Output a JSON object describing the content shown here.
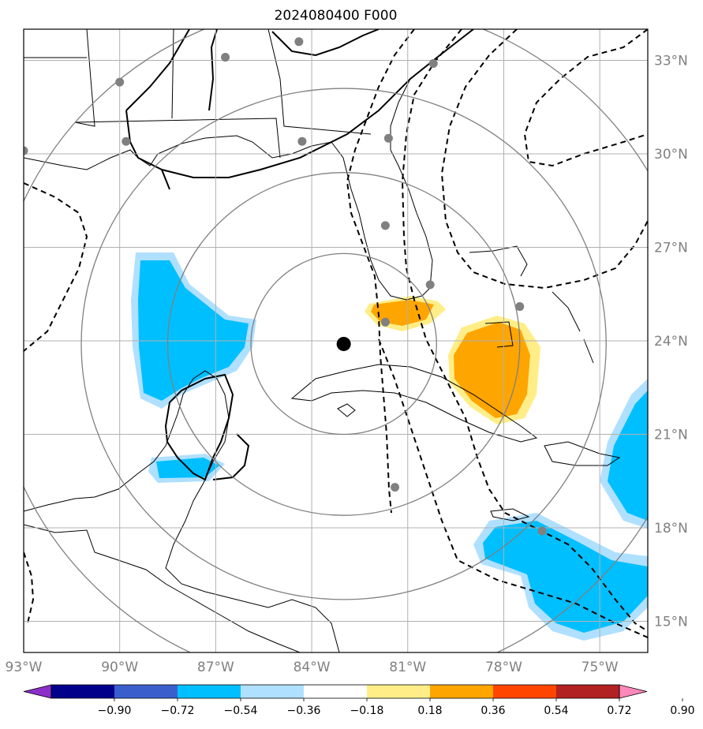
{
  "title": "2024080400 F000",
  "map": {
    "lon_range": [
      -93,
      -73.5
    ],
    "lat_range": [
      14,
      34
    ],
    "lon_ticks": [
      {
        "value": -93,
        "label": "93°W"
      },
      {
        "value": -90,
        "label": "90°W"
      },
      {
        "value": -87,
        "label": "87°W"
      },
      {
        "value": -84,
        "label": "84°W"
      },
      {
        "value": -81,
        "label": "81°W"
      },
      {
        "value": -78,
        "label": "78°W"
      },
      {
        "value": -75,
        "label": "75°W"
      }
    ],
    "lat_ticks": [
      {
        "value": 15,
        "label": "15°N"
      },
      {
        "value": 18,
        "label": "18°N"
      },
      {
        "value": 21,
        "label": "21°N"
      },
      {
        "value": 24,
        "label": "24°N"
      },
      {
        "value": 27,
        "label": "27°N"
      },
      {
        "value": 30,
        "label": "30°N"
      },
      {
        "value": 33,
        "label": "33°N"
      }
    ],
    "grid": true,
    "center": {
      "lon": -83.0,
      "lat": 23.9
    },
    "range_rings_deg": [
      2.9,
      5.5,
      8.2,
      11.0
    ],
    "stations": [
      {
        "lon": -93.0,
        "lat": 30.1
      },
      {
        "lon": -90.0,
        "lat": 32.3
      },
      {
        "lon": -89.8,
        "lat": 30.4
      },
      {
        "lon": -86.7,
        "lat": 33.1
      },
      {
        "lon": -84.4,
        "lat": 33.6
      },
      {
        "lon": -84.3,
        "lat": 30.4
      },
      {
        "lon": -81.6,
        "lat": 30.5
      },
      {
        "lon": -80.2,
        "lat": 32.9
      },
      {
        "lon": -81.7,
        "lat": 27.7
      },
      {
        "lon": -80.3,
        "lat": 25.8
      },
      {
        "lon": -81.7,
        "lat": 24.6
      },
      {
        "lon": -77.5,
        "lat": 25.1
      },
      {
        "lon": -81.4,
        "lat": 19.3
      },
      {
        "lon": -76.8,
        "lat": 17.9
      }
    ]
  },
  "colorbar": {
    "levels": [
      "−0.90",
      "−0.72",
      "−0.54",
      "−0.36",
      "−0.18",
      "0.18",
      "0.36",
      "0.54",
      "0.72",
      "0.90"
    ],
    "colors": [
      "#8b2fc9",
      "#00008b",
      "#3a5fcd",
      "#00bfff",
      "#b0e0ff",
      "#ffffff",
      "#ffee88",
      "#ffa500",
      "#ff4500",
      "#b22222",
      "#ff88bb"
    ],
    "under_color": "#8b2fc9",
    "over_color": "#ff88bb"
  },
  "fields": {
    "negative_anomaly_color": "#00bfff",
    "negative_anomaly_light": "#b0e0ff",
    "positive_anomaly_color": "#ffa500",
    "positive_anomaly_light": "#ffee88",
    "coast_color": "#000000",
    "ring_color": "#808080",
    "grid_color": "#b0b0b0",
    "station_color": "#808080"
  }
}
